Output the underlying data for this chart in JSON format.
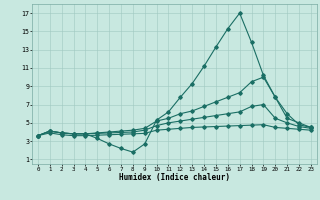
{
  "xlabel": "Humidex (Indice chaleur)",
  "bg_color": "#c8e8e0",
  "grid_color": "#a0c8c0",
  "line_color": "#1a6e64",
  "xlim": [
    -0.5,
    23.5
  ],
  "ylim": [
    0.5,
    18.0
  ],
  "xticks": [
    0,
    1,
    2,
    3,
    4,
    5,
    6,
    7,
    8,
    9,
    10,
    11,
    12,
    13,
    14,
    15,
    16,
    17,
    18,
    19,
    20,
    21,
    22,
    23
  ],
  "yticks": [
    1,
    3,
    5,
    7,
    9,
    11,
    13,
    15,
    17
  ],
  "curve1": {
    "x": [
      0,
      1,
      2,
      3,
      4,
      5,
      6,
      7,
      8,
      9,
      10,
      11,
      12,
      13,
      14,
      15,
      16,
      17,
      18,
      19,
      20,
      21,
      22,
      23
    ],
    "y": [
      3.6,
      4.1,
      3.9,
      3.8,
      3.8,
      3.3,
      2.7,
      2.2,
      1.8,
      2.7,
      5.3,
      6.2,
      7.8,
      9.3,
      11.2,
      13.3,
      15.3,
      17.0,
      13.8,
      10.2,
      7.8,
      5.5,
      5.0,
      4.5
    ]
  },
  "curve2": {
    "x": [
      0,
      1,
      2,
      3,
      4,
      5,
      6,
      7,
      8,
      9,
      10,
      11,
      12,
      13,
      14,
      15,
      16,
      17,
      18,
      19,
      20,
      21,
      22,
      23
    ],
    "y": [
      3.6,
      4.1,
      3.9,
      3.8,
      3.8,
      3.9,
      4.0,
      4.1,
      4.2,
      4.4,
      5.2,
      5.5,
      6.0,
      6.3,
      6.8,
      7.3,
      7.8,
      8.3,
      9.5,
      10.0,
      7.8,
      6.0,
      4.8,
      4.5
    ]
  },
  "curve3": {
    "x": [
      0,
      1,
      2,
      3,
      4,
      5,
      6,
      7,
      8,
      9,
      10,
      11,
      12,
      13,
      14,
      15,
      16,
      17,
      18,
      19,
      20,
      21,
      22,
      23
    ],
    "y": [
      3.6,
      4.1,
      3.9,
      3.8,
      3.8,
      3.85,
      3.9,
      3.95,
      4.0,
      4.2,
      4.7,
      5.0,
      5.2,
      5.4,
      5.6,
      5.8,
      6.0,
      6.2,
      6.8,
      7.0,
      5.5,
      5.0,
      4.6,
      4.4
    ]
  },
  "curve4": {
    "x": [
      0,
      1,
      2,
      3,
      4,
      5,
      6,
      7,
      8,
      9,
      10,
      11,
      12,
      13,
      14,
      15,
      16,
      17,
      18,
      19,
      20,
      21,
      22,
      23
    ],
    "y": [
      3.6,
      3.9,
      3.7,
      3.6,
      3.6,
      3.65,
      3.7,
      3.75,
      3.8,
      3.85,
      4.2,
      4.3,
      4.4,
      4.5,
      4.55,
      4.6,
      4.65,
      4.7,
      4.75,
      4.8,
      4.5,
      4.4,
      4.3,
      4.2
    ]
  }
}
